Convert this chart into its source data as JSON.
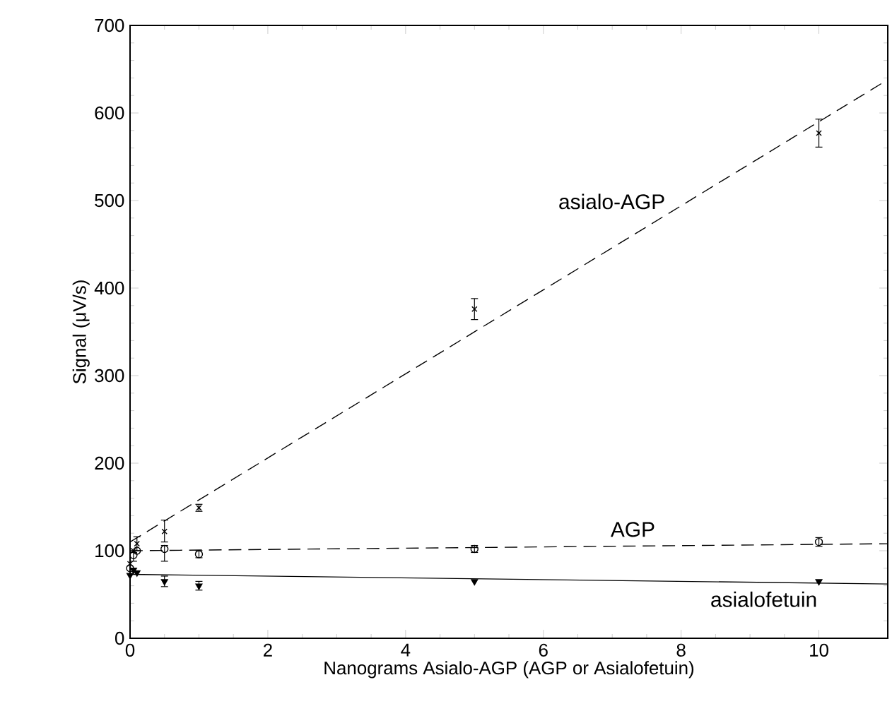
{
  "chart_data": {
    "type": "scatter",
    "xlabel": "Nanograms Asialo-AGP (AGP or Asialofetuin)",
    "ylabel": "Signal (μV/s)",
    "xlim": [
      0,
      11
    ],
    "ylim": [
      0,
      700
    ],
    "xticks": [
      0,
      2,
      4,
      6,
      8,
      10
    ],
    "yticks": [
      0,
      100,
      200,
      300,
      400,
      500,
      600,
      700
    ],
    "grid": false,
    "legend": false,
    "series": [
      {
        "type": "scatter",
        "marker": "cross",
        "color": "#000000",
        "x": [
          0,
          0.05,
          0.1,
          0.5,
          1,
          5,
          10
        ],
        "values": [
          85,
          100,
          108,
          122,
          149,
          376,
          577
        ],
        "errors": [
          null,
          null,
          [
            100,
            116
          ],
          [
            110,
            135
          ],
          4,
          12,
          16
        ]
      },
      {
        "type": "scatter",
        "marker": "circle",
        "color": "#000000",
        "x": [
          0,
          0.05,
          0.1,
          0.5,
          1,
          5,
          10
        ],
        "values": [
          80,
          95,
          100,
          102,
          96,
          102,
          110
        ],
        "errors": [
          null,
          [
            88,
            98
          ],
          null,
          [
            88,
            106
          ],
          4,
          4,
          5
        ]
      },
      {
        "type": "scatter",
        "marker": "triangle",
        "color": "#000000",
        "x": [
          0,
          0.05,
          0.1,
          0.5,
          1,
          5,
          10
        ],
        "values": [
          72,
          78,
          75,
          65,
          60,
          65,
          65
        ],
        "errors": [
          null,
          null,
          null,
          6,
          5,
          null,
          null
        ]
      },
      {
        "name": "asialo-AGP",
        "type": "line",
        "line_style": "dashed",
        "color": "#000000",
        "x": [
          0,
          11
        ],
        "values": [
          110,
          638
        ]
      },
      {
        "name": "AGP",
        "type": "line",
        "line_style": "dashed",
        "color": "#000000",
        "x": [
          0,
          11
        ],
        "values": [
          100,
          108
        ]
      },
      {
        "name": "asialofetuin",
        "type": "line",
        "line_style": "solid",
        "color": "#000000",
        "x": [
          0,
          11
        ],
        "values": [
          73,
          62
        ]
      }
    ]
  }
}
